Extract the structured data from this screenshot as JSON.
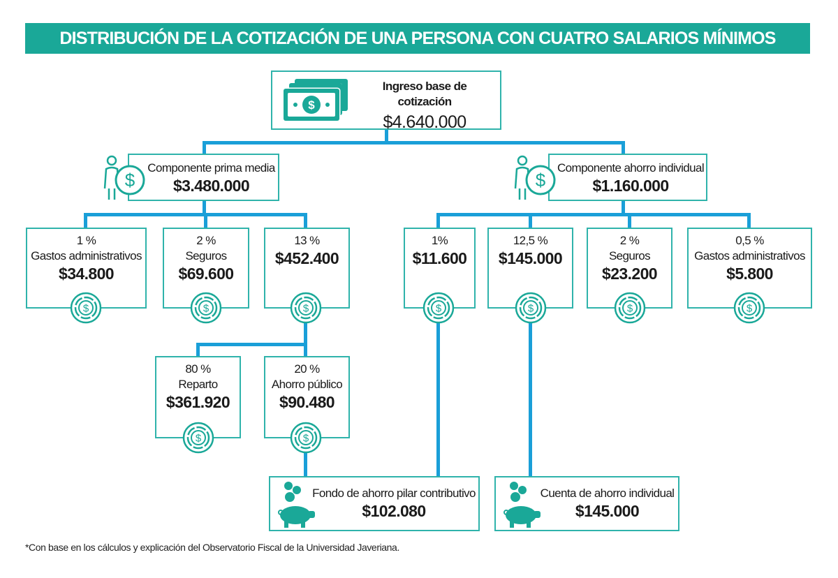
{
  "title": "DISTRIBUCIÓN DE LA COTIZACIÓN DE UNA PERSONA CON CUATRO SALARIOS MÍNIMOS",
  "colors": {
    "banner": "#1aa898",
    "lines": "#1a9fd8",
    "border": "#2fb3ab",
    "icon": "#1aa898"
  },
  "root": {
    "label": "Ingreso base de cotización",
    "value": "$4.640.000",
    "icon": "money-bills-icon"
  },
  "prima": {
    "label": "Componente prima media",
    "value": "$3.480.000",
    "icon": "person-dollar-icon"
  },
  "ahorro": {
    "label": "Componente ahorro individual",
    "value": "$1.160.000",
    "icon": "person-dollar-icon"
  },
  "nodes": [
    {
      "pct": "1 %",
      "label": "Gastos administrativos",
      "value": "$34.800"
    },
    {
      "pct": "2 %",
      "label": "Seguros",
      "value": "$69.600"
    },
    {
      "pct": "13 %",
      "label": "",
      "value": "$452.400"
    },
    {
      "pct": "1%",
      "label": "",
      "value": "$11.600"
    },
    {
      "pct": "12,5 %",
      "label": "",
      "value": "$145.000"
    },
    {
      "pct": "2 %",
      "label": "Seguros",
      "value": "$23.200"
    },
    {
      "pct": "0,5 %",
      "label": "Gastos administrativos",
      "value": "$5.800"
    },
    {
      "pct": "80 %",
      "label": "Reparto",
      "value": "$361.920"
    },
    {
      "pct": "20 %",
      "label": "Ahorro público",
      "value": "$90.480"
    }
  ],
  "fondo": {
    "label": "Fondo de ahorro pilar contributivo",
    "value": "$102.080",
    "icon": "piggy-bank-icon"
  },
  "cuenta": {
    "label": "Cuenta de ahorro individual",
    "value": "$145.000",
    "icon": "piggy-bank-icon"
  },
  "footnote": "*Con base en los cálculos y explicación del Observatorio Fiscal de la Universidad Javeriana."
}
